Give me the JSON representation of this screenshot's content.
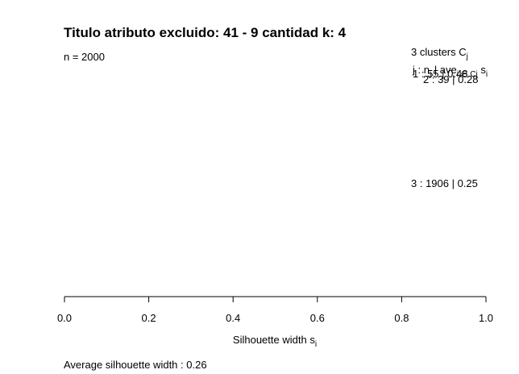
{
  "chart_data": {
    "type": "silhouette",
    "title": "Titulo atributo excluido:  41 - 9  cantidad k: 4",
    "n_label": "n = 2000",
    "clusters_header": "3  clusters  C",
    "clusters_header_sub": "j",
    "col_header": "j :  n",
    "col_header_sub": "j",
    "col_header_rest": " | ave",
    "col_header_rest_sub": "i ∈ Cj",
    "col_header_rest_tail": " s",
    "col_header_rest_tail_sub": "i",
    "clusters": [
      {
        "id": 1,
        "n": 55,
        "ave": 0.48,
        "label": "1 :   55  | 0.48"
      },
      {
        "id": 2,
        "n": 39,
        "ave": 0.28,
        "label": "2 :   39  | 0.28"
      },
      {
        "id": 3,
        "n": 1906,
        "ave": 0.25,
        "label": "3 :  1906  | 0.25"
      }
    ],
    "xlim": [
      0,
      1
    ],
    "xticks": [
      0.0,
      0.2,
      0.4,
      0.6,
      0.8,
      1.0
    ],
    "xtick_labels": [
      "0.0",
      "0.2",
      "0.4",
      "0.6",
      "0.8",
      "1.0"
    ],
    "xlabel": "Silhouette width s",
    "xlabel_sub": "i",
    "footer": "Average silhouette width :  0.26",
    "grid": false
  }
}
